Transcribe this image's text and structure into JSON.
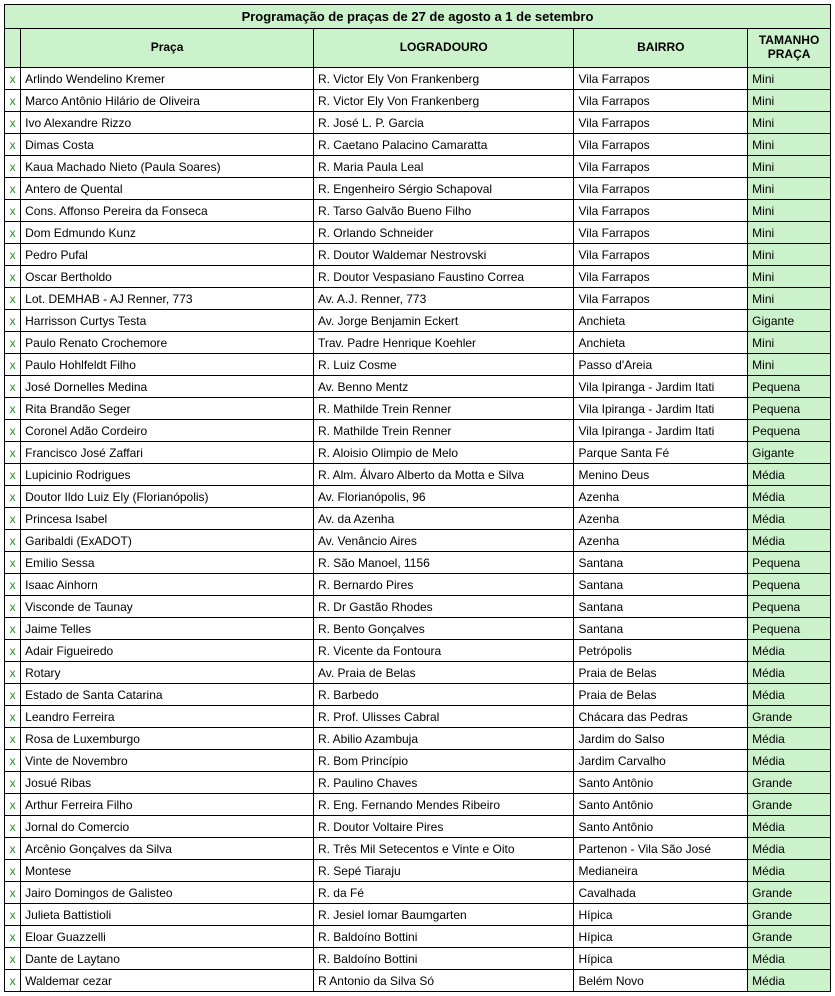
{
  "title": "Programação de praças de 27 de agosto a 1 de setembro",
  "headers": {
    "praca": "Praça",
    "logradouro": "LOGRADOURO",
    "bairro": "BAIRRO",
    "tamanho": "TAMANHO PRAÇA"
  },
  "colors": {
    "header_bg": "#ccf2cc",
    "size_bg": "#ccf2cc",
    "x_color": "#268c26",
    "border": "#000000",
    "text": "#000000"
  },
  "x_mark": "x",
  "rows": [
    {
      "praca": "Arlindo Wendelino Kremer",
      "logradouro": "R. Victor Ely Von Frankenberg",
      "bairro": "Vila Farrapos",
      "tamanho": "Mini"
    },
    {
      "praca": "Marco Antônio Hilário de Oliveira",
      "logradouro": "R. Victor Ely Von Frankenberg",
      "bairro": "Vila Farrapos",
      "tamanho": "Mini"
    },
    {
      "praca": "Ivo Alexandre Rizzo",
      "logradouro": "R. José L. P. Garcia",
      "bairro": "Vila Farrapos",
      "tamanho": "Mini"
    },
    {
      "praca": "Dimas Costa",
      "logradouro": "R. Caetano Palacino Camaratta",
      "bairro": "Vila Farrapos",
      "tamanho": "Mini"
    },
    {
      "praca": "Kaua Machado Nieto (Paula Soares)",
      "logradouro": "R. Maria Paula Leal",
      "bairro": "Vila Farrapos",
      "tamanho": "Mini"
    },
    {
      "praca": "Antero de Quental",
      "logradouro": "R. Engenheiro Sérgio Schapoval",
      "bairro": "Vila Farrapos",
      "tamanho": "Mini"
    },
    {
      "praca": "Cons. Affonso Pereira da Fonseca",
      "logradouro": "R. Tarso Galvão Bueno Filho",
      "bairro": "Vila Farrapos",
      "tamanho": "Mini"
    },
    {
      "praca": "Dom Edmundo Kunz",
      "logradouro": "R. Orlando Schneider",
      "bairro": "Vila Farrapos",
      "tamanho": "Mini"
    },
    {
      "praca": "Pedro Pufal",
      "logradouro": "R. Doutor Waldemar Nestrovski",
      "bairro": "Vila Farrapos",
      "tamanho": "Mini"
    },
    {
      "praca": "Oscar Bertholdo",
      "logradouro": "R. Doutor Vespasiano Faustino Correa",
      "bairro": "Vila Farrapos",
      "tamanho": "Mini"
    },
    {
      "praca": "Lot. DEMHAB - AJ Renner, 773",
      "logradouro": "Av. A.J. Renner, 773",
      "bairro": "Vila Farrapos",
      "tamanho": "Mini"
    },
    {
      "praca": "Harrisson Curtys Testa",
      "logradouro": "Av. Jorge Benjamin Eckert",
      "bairro": "Anchieta",
      "tamanho": "Gigante"
    },
    {
      "praca": "Paulo Renato Crochemore",
      "logradouro": "Trav. Padre Henrique Koehler",
      "bairro": "Anchieta",
      "tamanho": "Mini"
    },
    {
      "praca": "Paulo Hohlfeldt Filho",
      "logradouro": "R. Luiz Cosme",
      "bairro": "Passo d'Areia",
      "tamanho": "Mini"
    },
    {
      "praca": "José Dornelles Medina",
      "logradouro": "Av. Benno Mentz",
      "bairro": "Vila Ipiranga - Jardim Itati",
      "tamanho": "Pequena"
    },
    {
      "praca": "Rita Brandão Seger",
      "logradouro": "R. Mathilde Trein Renner",
      "bairro": "Vila Ipiranga - Jardim Itati",
      "tamanho": "Pequena"
    },
    {
      "praca": "Coronel Adão Cordeiro",
      "logradouro": "R. Mathilde Trein Renner",
      "bairro": "Vila Ipiranga - Jardim Itati",
      "tamanho": "Pequena"
    },
    {
      "praca": "Francisco José Zaffari",
      "logradouro": "R. Aloisio Olimpio de Melo",
      "bairro": "Parque Santa Fé",
      "tamanho": "Gigante"
    },
    {
      "praca": "Lupicinio Rodrigues",
      "logradouro": "R. Alm. Álvaro Alberto da Motta e Silva",
      "bairro": "Menino Deus",
      "tamanho": "Média"
    },
    {
      "praca": "Doutor Ildo Luiz Ely (Florianópolis)",
      "logradouro": "Av. Florianópolis, 96",
      "bairro": "Azenha",
      "tamanho": "Média"
    },
    {
      "praca": "Princesa Isabel",
      "logradouro": "Av. da Azenha",
      "bairro": "Azenha",
      "tamanho": "Média"
    },
    {
      "praca": "Garibaldi (ExADOT)",
      "logradouro": "Av. Venâncio Aires",
      "bairro": "Azenha",
      "tamanho": "Média"
    },
    {
      "praca": "Emilio Sessa",
      "logradouro": "R. São Manoel, 1156",
      "bairro": "Santana",
      "tamanho": "Pequena"
    },
    {
      "praca": "Isaac Ainhorn",
      "logradouro": "R. Bernardo Pires",
      "bairro": "Santana",
      "tamanho": "Pequena"
    },
    {
      "praca": "Visconde de Taunay",
      "logradouro": "R. Dr Gastão Rhodes",
      "bairro": "Santana",
      "tamanho": "Pequena"
    },
    {
      "praca": "Jaime Telles",
      "logradouro": "R. Bento Gonçalves",
      "bairro": "Santana",
      "tamanho": "Pequena"
    },
    {
      "praca": "Adair Figueiredo",
      "logradouro": "R. Vicente da Fontoura",
      "bairro": "Petrópolis",
      "tamanho": "Média"
    },
    {
      "praca": "Rotary",
      "logradouro": "Av. Praia de Belas",
      "bairro": "Praia de Belas",
      "tamanho": "Média"
    },
    {
      "praca": "Estado de Santa Catarina",
      "logradouro": "R. Barbedo",
      "bairro": "Praia de Belas",
      "tamanho": "Média"
    },
    {
      "praca": "Leandro Ferreira",
      "logradouro": "R. Prof. Ulisses Cabral",
      "bairro": "Chácara das Pedras",
      "tamanho": "Grande"
    },
    {
      "praca": "Rosa de Luxemburgo",
      "logradouro": "R. Abilio Azambuja",
      "bairro": "Jardim do Salso",
      "tamanho": "Média"
    },
    {
      "praca": "Vinte de Novembro",
      "logradouro": "R. Bom Princípio",
      "bairro": "Jardim Carvalho",
      "tamanho": "Média"
    },
    {
      "praca": "Josué Ribas",
      "logradouro": "R. Paulino Chaves",
      "bairro": "Santo Antônio",
      "tamanho": "Grande"
    },
    {
      "praca": "Arthur Ferreira Filho",
      "logradouro": "R. Eng. Fernando Mendes Ribeiro",
      "bairro": "Santo Antônio",
      "tamanho": "Grande"
    },
    {
      "praca": "Jornal do Comercio",
      "logradouro": "R. Doutor Voltaire Pires",
      "bairro": "Santo Antônio",
      "tamanho": "Média"
    },
    {
      "praca": "Arcênio Gonçalves da Silva",
      "logradouro": "R. Três Mil Setecentos e Vinte e Oito",
      "bairro": "Partenon - Vila São José",
      "tamanho": "Média"
    },
    {
      "praca": "Montese",
      "logradouro": "R. Sepé Tiaraju",
      "bairro": "Medianeira",
      "tamanho": "Média"
    },
    {
      "praca": "Jairo Domingos de Galisteo",
      "logradouro": "R. da Fé",
      "bairro": "Cavalhada",
      "tamanho": "Grande"
    },
    {
      "praca": "Julieta Battistioli",
      "logradouro": "R. Jesiel Iomar Baumgarten",
      "bairro": "Hípica",
      "tamanho": "Grande"
    },
    {
      "praca": "Eloar Guazzelli",
      "logradouro": "R. Baldoíno Bottini",
      "bairro": "Hípica",
      "tamanho": "Grande"
    },
    {
      "praca": "Dante de Laytano",
      "logradouro": "R. Baldoíno Bottini",
      "bairro": "Hípica",
      "tamanho": "Média"
    },
    {
      "praca": "Waldemar cezar",
      "logradouro": "R Antonio da Silva Só",
      "bairro": "Belém Novo",
      "tamanho": "Média"
    }
  ]
}
